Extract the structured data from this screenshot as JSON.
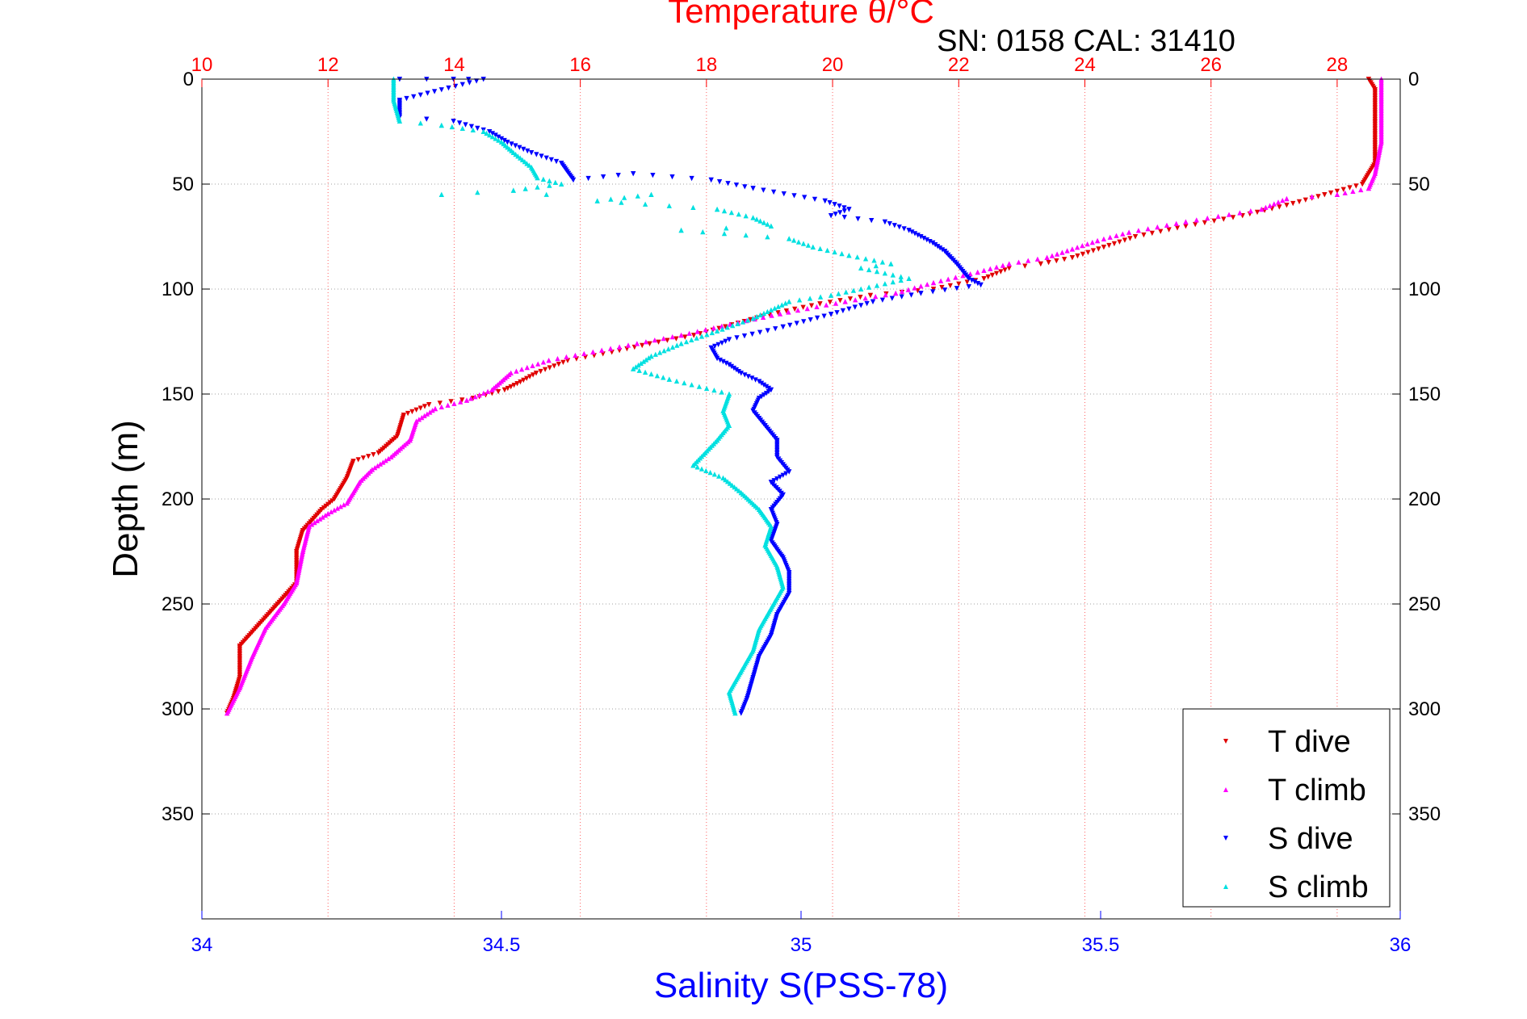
{
  "chart_data": {
    "type": "scatter",
    "title": "Temperature θ/°C",
    "subtitle": "SN: 0158  CAL: 31410",
    "ylabel": "Depth (m)",
    "xlabel_bottom": "Salinity S(PSS-78)",
    "xlabel_top": "Temperature θ/°C",
    "y_range": [
      0,
      400
    ],
    "y_reversed": true,
    "y_ticks": [
      "0",
      "50",
      "100",
      "150",
      "200",
      "250",
      "300",
      "350"
    ],
    "top_axis_range": [
      10,
      29
    ],
    "top_ticks": [
      "10",
      "12",
      "14",
      "16",
      "18",
      "20",
      "22",
      "24",
      "26",
      "28"
    ],
    "bottom_axis_range": [
      34,
      36
    ],
    "bottom_ticks": [
      "34",
      "34.5",
      "35",
      "35.5",
      "36"
    ],
    "grid": true,
    "legend_position": "bottom-right",
    "colors": {
      "title": "#ff0000",
      "top_axis": "#ff0000",
      "bottom_axis": "#0000ff",
      "text": "#000000",
      "grid": "#a0a0a0"
    },
    "series": [
      {
        "name": "T dive",
        "axis": "top",
        "color": "#e00000",
        "marker": "triangle-down",
        "points": [
          [
            28.5,
            0
          ],
          [
            28.6,
            5
          ],
          [
            28.6,
            20
          ],
          [
            28.6,
            40
          ],
          [
            28.4,
            50
          ],
          [
            27.8,
            55
          ],
          [
            27.2,
            60
          ],
          [
            26.5,
            65
          ],
          [
            25.6,
            70
          ],
          [
            24.8,
            75
          ],
          [
            24.3,
            80
          ],
          [
            23.8,
            85
          ],
          [
            23.3,
            88
          ],
          [
            22.8,
            90
          ],
          [
            22.4,
            95
          ],
          [
            21.6,
            100
          ],
          [
            20.6,
            103
          ],
          [
            19.8,
            107
          ],
          [
            19.0,
            112
          ],
          [
            18.4,
            117
          ],
          [
            17.8,
            122
          ],
          [
            17.1,
            126
          ],
          [
            16.5,
            130
          ],
          [
            15.8,
            134
          ],
          [
            15.3,
            140
          ],
          [
            15.0,
            145
          ],
          [
            14.8,
            148
          ],
          [
            14.3,
            152
          ],
          [
            13.6,
            155
          ],
          [
            13.2,
            160
          ],
          [
            13.1,
            170
          ],
          [
            12.8,
            178
          ],
          [
            12.4,
            182
          ],
          [
            12.3,
            190
          ],
          [
            12.1,
            200
          ],
          [
            11.9,
            205
          ],
          [
            11.6,
            215
          ],
          [
            11.5,
            225
          ],
          [
            11.5,
            240
          ],
          [
            11.2,
            250
          ],
          [
            10.9,
            260
          ],
          [
            10.6,
            270
          ],
          [
            10.6,
            285
          ],
          [
            10.5,
            295
          ],
          [
            10.4,
            302
          ]
        ]
      },
      {
        "name": "T climb",
        "axis": "top",
        "color": "#ff00ff",
        "marker": "triangle-up",
        "points": [
          [
            28.7,
            0
          ],
          [
            28.7,
            10
          ],
          [
            28.7,
            30
          ],
          [
            28.6,
            45
          ],
          [
            28.5,
            52
          ],
          [
            28.0,
            55
          ],
          [
            27.2,
            57
          ],
          [
            26.8,
            62
          ],
          [
            25.6,
            68
          ],
          [
            24.7,
            73
          ],
          [
            24.2,
            77
          ],
          [
            23.8,
            81
          ],
          [
            23.4,
            85
          ],
          [
            22.8,
            88
          ],
          [
            22.3,
            92
          ],
          [
            21.6,
            97
          ],
          [
            21.0,
            102
          ],
          [
            20.2,
            106
          ],
          [
            19.3,
            111
          ],
          [
            18.5,
            116
          ],
          [
            17.6,
            122
          ],
          [
            16.9,
            126
          ],
          [
            16.2,
            130
          ],
          [
            15.5,
            134
          ],
          [
            14.9,
            140
          ],
          [
            14.6,
            148
          ],
          [
            14.2,
            153
          ],
          [
            13.7,
            157
          ],
          [
            13.4,
            163
          ],
          [
            13.3,
            172
          ],
          [
            13.0,
            180
          ],
          [
            12.7,
            186
          ],
          [
            12.5,
            192
          ],
          [
            12.3,
            202
          ],
          [
            12.0,
            207
          ],
          [
            11.7,
            213
          ],
          [
            11.6,
            225
          ],
          [
            11.5,
            240
          ],
          [
            11.3,
            250
          ],
          [
            11.0,
            262
          ],
          [
            10.8,
            275
          ],
          [
            10.6,
            290
          ],
          [
            10.4,
            302
          ]
        ]
      },
      {
        "name": "S dive",
        "axis": "bottom",
        "color": "#0000ff",
        "marker": "triangle-down",
        "points": [
          [
            34.33,
            0
          ],
          [
            34.42,
            0
          ],
          [
            34.47,
            0
          ],
          [
            34.33,
            10
          ],
          [
            34.33,
            18
          ],
          [
            34.42,
            20
          ],
          [
            34.48,
            25
          ],
          [
            34.51,
            30
          ],
          [
            34.55,
            35
          ],
          [
            34.6,
            40
          ],
          [
            34.62,
            48
          ],
          [
            34.72,
            45
          ],
          [
            34.85,
            48
          ],
          [
            34.92,
            52
          ],
          [
            35.04,
            58
          ],
          [
            35.08,
            62
          ],
          [
            35.05,
            65
          ],
          [
            35.14,
            68
          ],
          [
            35.18,
            72
          ],
          [
            35.2,
            75
          ],
          [
            35.22,
            78
          ],
          [
            35.24,
            82
          ],
          [
            35.26,
            88
          ],
          [
            35.28,
            95
          ],
          [
            35.3,
            98
          ],
          [
            35.2,
            102
          ],
          [
            35.12,
            106
          ],
          [
            35.05,
            112
          ],
          [
            34.97,
            118
          ],
          [
            34.88,
            124
          ],
          [
            34.85,
            128
          ],
          [
            34.86,
            133
          ],
          [
            34.88,
            136
          ],
          [
            34.9,
            140
          ],
          [
            34.93,
            144
          ],
          [
            34.95,
            148
          ],
          [
            34.93,
            152
          ],
          [
            34.92,
            158
          ],
          [
            34.94,
            165
          ],
          [
            34.96,
            172
          ],
          [
            34.96,
            180
          ],
          [
            34.98,
            187
          ],
          [
            34.95,
            192
          ],
          [
            34.97,
            198
          ],
          [
            34.95,
            205
          ],
          [
            34.96,
            212
          ],
          [
            34.95,
            220
          ],
          [
            34.97,
            228
          ],
          [
            34.98,
            235
          ],
          [
            34.98,
            245
          ],
          [
            34.96,
            255
          ],
          [
            34.95,
            265
          ],
          [
            34.93,
            275
          ],
          [
            34.92,
            285
          ],
          [
            34.91,
            295
          ],
          [
            34.9,
            302
          ]
        ]
      },
      {
        "name": "S climb",
        "axis": "bottom",
        "color": "#00e0e0",
        "marker": "triangle-up",
        "points": [
          [
            34.32,
            0
          ],
          [
            34.32,
            10
          ],
          [
            34.33,
            20
          ],
          [
            34.4,
            22
          ],
          [
            34.47,
            25
          ],
          [
            34.5,
            30
          ],
          [
            34.52,
            35
          ],
          [
            34.55,
            42
          ],
          [
            34.56,
            47
          ],
          [
            34.6,
            50
          ],
          [
            34.52,
            53
          ],
          [
            34.4,
            55
          ],
          [
            34.75,
            55
          ],
          [
            34.66,
            58
          ],
          [
            34.86,
            62
          ],
          [
            34.92,
            66
          ],
          [
            34.95,
            70
          ],
          [
            34.8,
            72
          ],
          [
            34.98,
            76
          ],
          [
            35.02,
            80
          ],
          [
            35.08,
            84
          ],
          [
            35.15,
            88
          ],
          [
            35.1,
            90
          ],
          [
            35.18,
            95
          ],
          [
            35.1,
            100
          ],
          [
            35.05,
            103
          ],
          [
            34.98,
            106
          ],
          [
            34.95,
            110
          ],
          [
            34.92,
            114
          ],
          [
            34.86,
            120
          ],
          [
            34.8,
            126
          ],
          [
            34.75,
            132
          ],
          [
            34.72,
            138
          ],
          [
            34.78,
            143
          ],
          [
            34.88,
            150
          ],
          [
            34.87,
            158
          ],
          [
            34.88,
            165
          ],
          [
            34.86,
            172
          ],
          [
            34.84,
            178
          ],
          [
            34.82,
            184
          ],
          [
            34.87,
            190
          ],
          [
            34.9,
            197
          ],
          [
            34.93,
            205
          ],
          [
            34.95,
            213
          ],
          [
            34.94,
            222
          ],
          [
            34.96,
            232
          ],
          [
            34.97,
            242
          ],
          [
            34.95,
            252
          ],
          [
            34.93,
            262
          ],
          [
            34.92,
            272
          ],
          [
            34.9,
            282
          ],
          [
            34.88,
            292
          ],
          [
            34.89,
            302
          ]
        ]
      }
    ]
  }
}
